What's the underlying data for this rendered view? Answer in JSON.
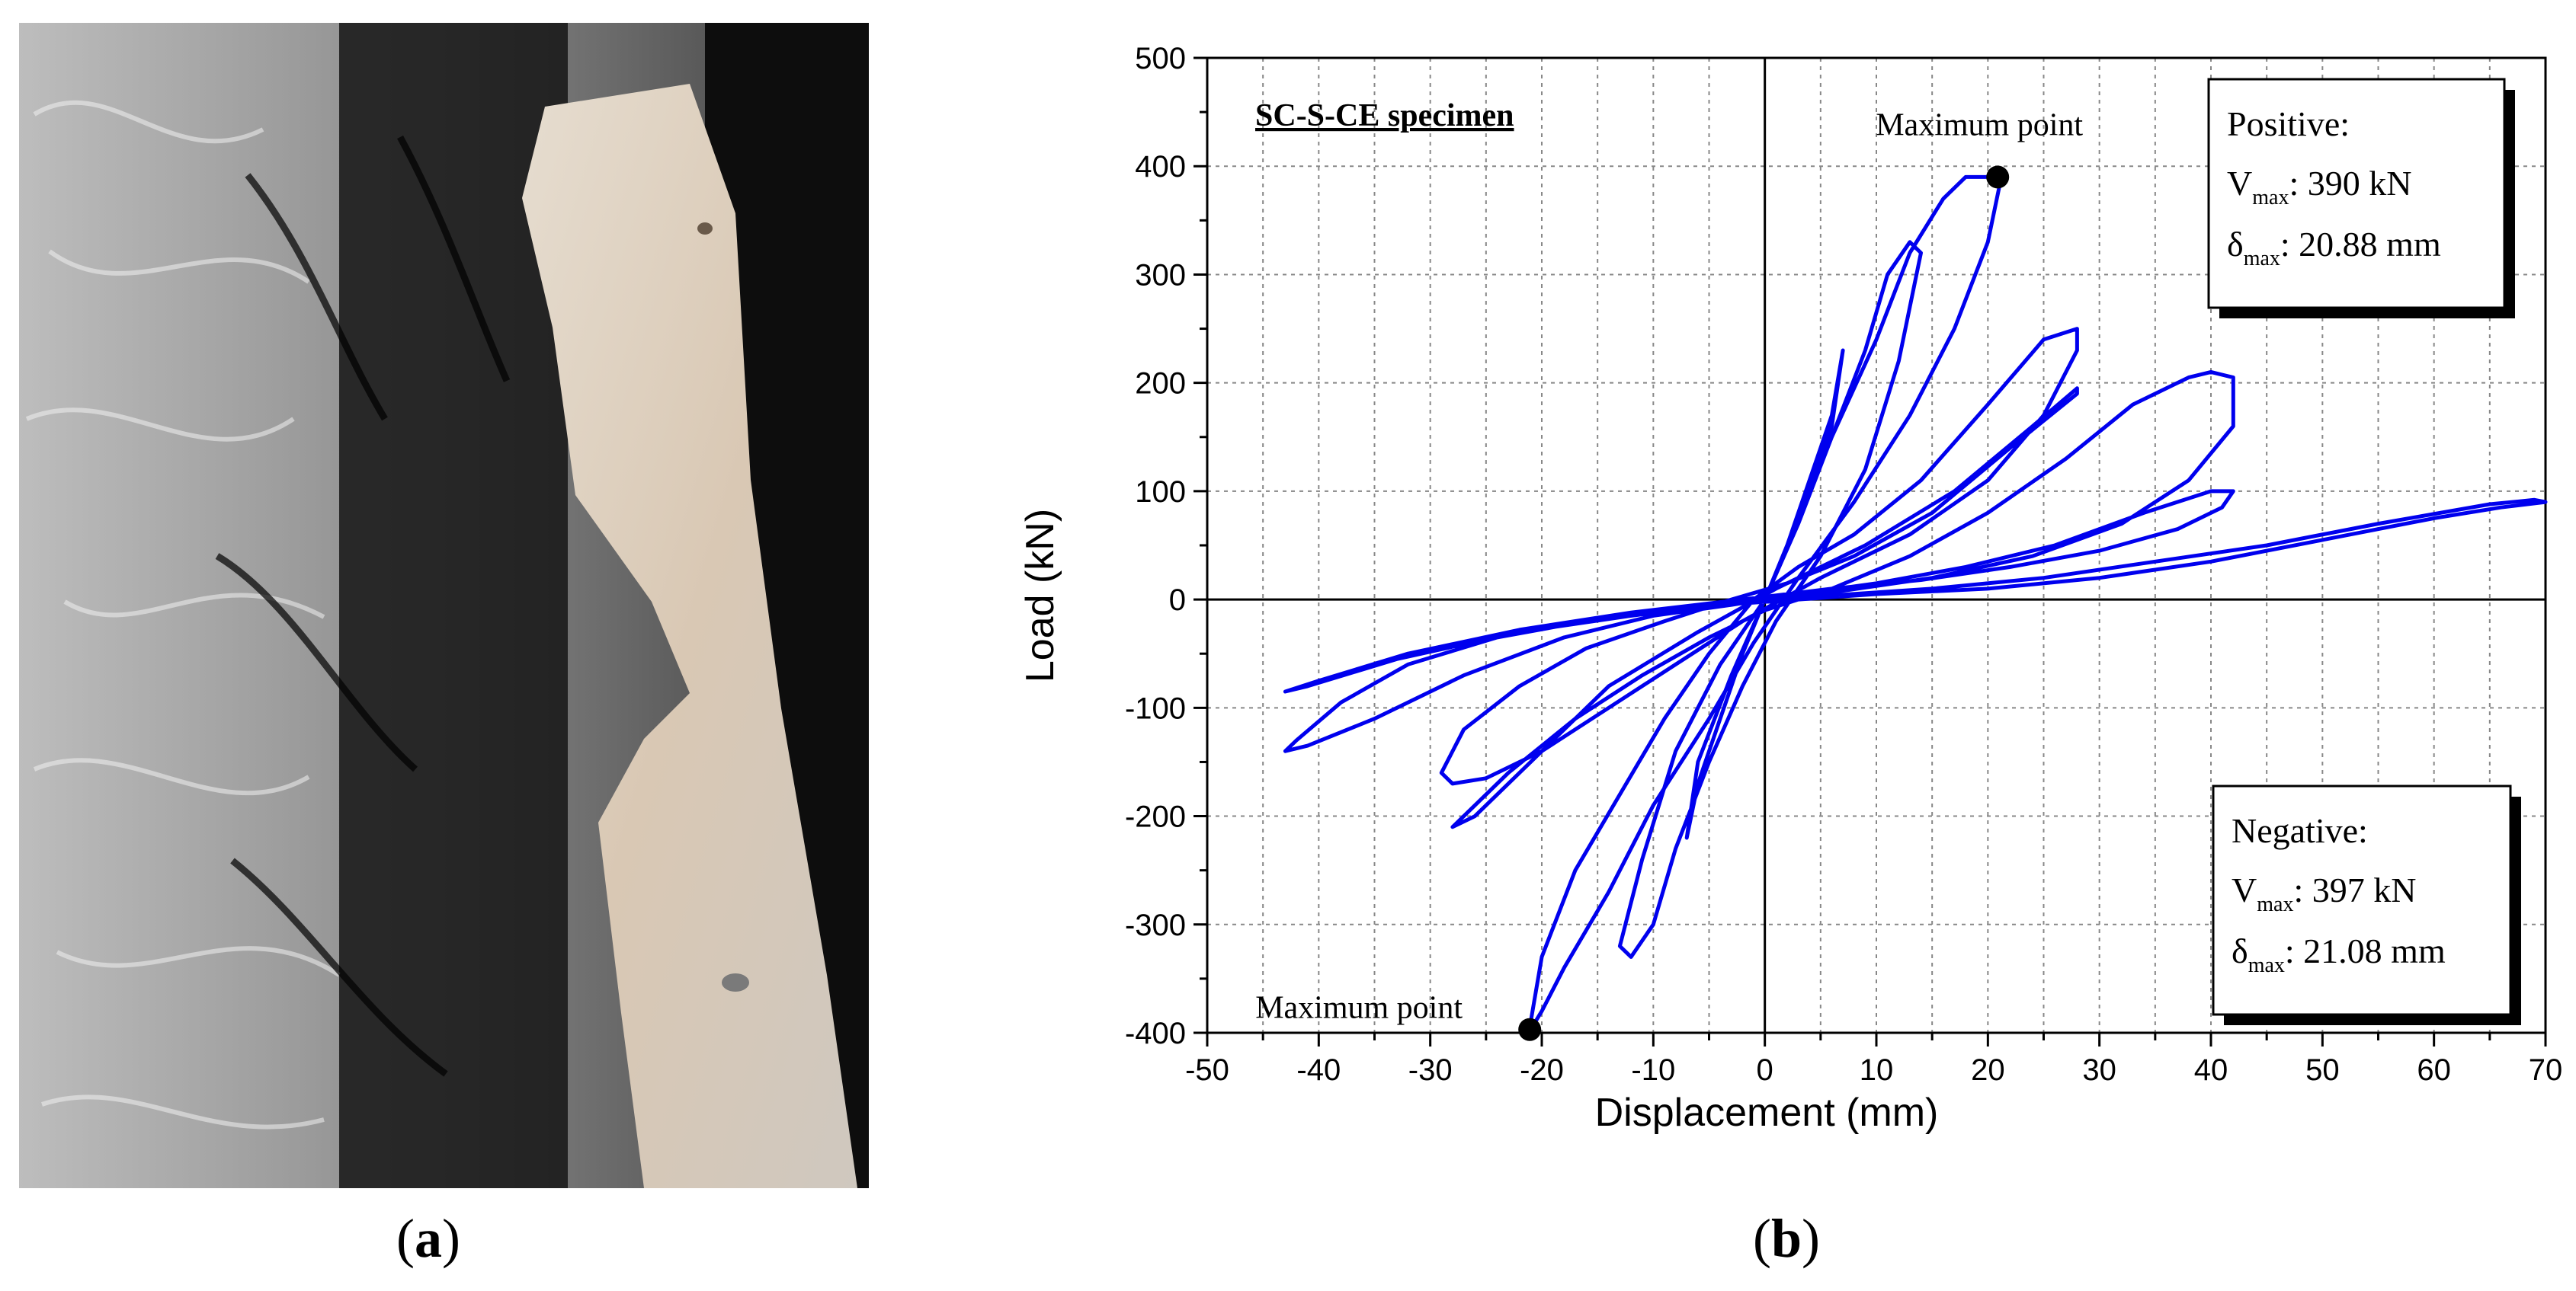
{
  "panels": {
    "a": {
      "label_open": "(",
      "label_letter": "a",
      "label_close": ")"
    },
    "b": {
      "label_open": "(",
      "label_letter": "b",
      "label_close": ")"
    }
  },
  "chart_data": {
    "type": "line",
    "title": "SC-S-CE specimen",
    "xlabel": "Displacement (mm)",
    "ylabel": "Load (kN)",
    "xlim": [
      -50,
      70
    ],
    "ylim": [
      -400,
      500
    ],
    "x_ticks": [
      -50,
      -40,
      -30,
      -20,
      -10,
      0,
      10,
      20,
      30,
      40,
      50,
      60,
      70
    ],
    "y_ticks": [
      -400,
      -300,
      -200,
      -100,
      0,
      100,
      200,
      300,
      400,
      500
    ],
    "grid": true,
    "line_color": "#0000ee",
    "series": [
      {
        "x": [
          0,
          2,
          4,
          6,
          7,
          6,
          3,
          0,
          -2,
          -4,
          -6,
          -7,
          -6,
          -3,
          0,
          3,
          6,
          9,
          11,
          13,
          14,
          12,
          9,
          5,
          1,
          -2,
          -5,
          -8,
          -10,
          -12,
          -13,
          -11,
          -8,
          -4,
          0,
          3,
          6,
          10,
          13,
          16,
          18,
          20,
          21,
          20,
          17,
          13,
          8,
          3,
          -1,
          -5,
          -10,
          -14,
          -18,
          -20,
          -21,
          -21,
          -20,
          -17,
          -13,
          -9,
          -5,
          -1,
          3,
          8,
          14,
          20,
          25,
          28,
          28,
          25,
          20,
          13,
          5,
          -2,
          -8,
          -14,
          -20,
          -25,
          -28,
          -29,
          -27,
          -22,
          -16,
          -9,
          -3,
          2,
          8,
          15,
          22,
          28,
          28,
          24,
          17,
          9,
          1,
          -6,
          -14,
          -21,
          -26,
          -28,
          -27,
          -23,
          -17,
          -11,
          -5,
          0,
          6,
          13,
          20,
          27,
          33,
          38,
          40,
          42,
          42,
          38,
          32,
          24,
          15,
          7,
          0,
          -8,
          -16,
          -24,
          -32,
          -38,
          -42,
          -43,
          -41,
          -35,
          -27,
          -18,
          -10,
          -3,
          3,
          10,
          18,
          26,
          34,
          40,
          42,
          41,
          37,
          30,
          22,
          14,
          6,
          -2,
          -12,
          -22,
          -32,
          -40,
          -43,
          -41,
          -33,
          -22,
          -12,
          -4,
          3,
          10,
          20,
          30,
          40,
          50,
          60,
          66,
          70,
          69,
          65,
          55,
          45,
          35,
          25,
          15,
          5,
          0
        ],
        "y": [
          0,
          50,
          110,
          170,
          230,
          160,
          70,
          0,
          -50,
          -110,
          -170,
          -220,
          -150,
          -70,
          0,
          70,
          150,
          230,
          300,
          330,
          320,
          220,
          120,
          40,
          -20,
          -80,
          -150,
          -230,
          -300,
          -330,
          -320,
          -240,
          -140,
          -60,
          0,
          70,
          150,
          240,
          320,
          370,
          390,
          390,
          380,
          330,
          250,
          170,
          90,
          20,
          -40,
          -110,
          -190,
          -270,
          -340,
          -380,
          -397,
          -390,
          -330,
          -250,
          -180,
          -110,
          -50,
          0,
          30,
          60,
          110,
          180,
          240,
          250,
          230,
          170,
          110,
          60,
          20,
          -20,
          -60,
          -100,
          -140,
          -165,
          -170,
          -160,
          -120,
          -80,
          -45,
          -20,
          0,
          15,
          40,
          80,
          140,
          190,
          195,
          160,
          100,
          50,
          10,
          -30,
          -80,
          -150,
          -200,
          -210,
          -200,
          -160,
          -110,
          -70,
          -35,
          -10,
          10,
          40,
          80,
          130,
          180,
          205,
          210,
          205,
          160,
          110,
          70,
          40,
          20,
          8,
          0,
          -10,
          -20,
          -35,
          -60,
          -95,
          -130,
          -140,
          -135,
          -110,
          -70,
          -35,
          -15,
          -5,
          5,
          15,
          30,
          50,
          80,
          100,
          100,
          85,
          65,
          45,
          30,
          18,
          10,
          0,
          -12,
          -28,
          -50,
          -75,
          -85,
          -80,
          -55,
          -30,
          -15,
          -5,
          0,
          5,
          10,
          20,
          35,
          55,
          75,
          85,
          90,
          92,
          88,
          70,
          50,
          35,
          20,
          10,
          3,
          0
        ]
      }
    ],
    "markers": [
      {
        "x": 20.88,
        "y": 390,
        "label": "Maximum point"
      },
      {
        "x": -21.08,
        "y": -397,
        "label": "Maximum point"
      }
    ],
    "annotations": {
      "positive": {
        "heading": "Positive:",
        "v_sym": "V",
        "v_sub": "max",
        "v_value": ": 390 kN",
        "d_sym": "δ",
        "d_sub": "max",
        "d_value": ": 20.88 mm"
      },
      "negative": {
        "heading": "Negative:",
        "v_sym": "V",
        "v_sub": "max",
        "v_value": ": 397 kN",
        "d_sym": "δ",
        "d_sub": "max",
        "d_value": ": 21.08 mm"
      }
    }
  }
}
